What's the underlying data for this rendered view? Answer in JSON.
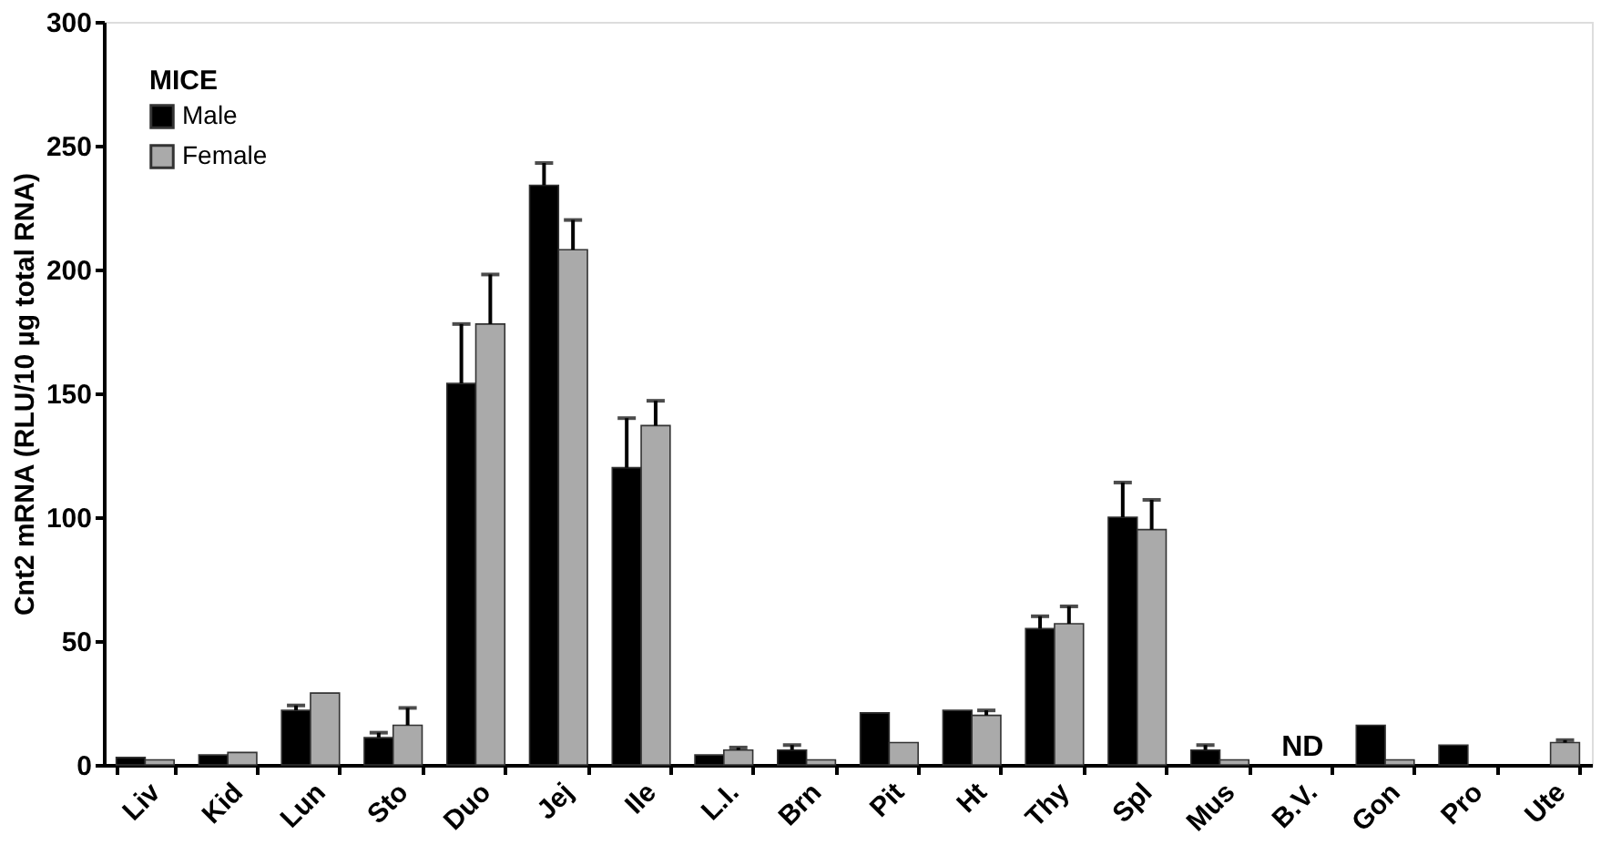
{
  "chart_data": {
    "type": "bar",
    "ylabel": "Cnt2 mRNA (RLU/10 µg total RNA)",
    "legend_title": "MICE",
    "categories": [
      "Liv",
      "Kid",
      "Lun",
      "Sto",
      "Duo",
      "Jej",
      "Ile",
      "L.I.",
      "Brn",
      "Pit",
      "Ht",
      "Thy",
      "Spl",
      "Mus",
      "B.V.",
      "Gon",
      "Pro",
      "Ute"
    ],
    "series": [
      {
        "name": "Male",
        "color": "#000000",
        "values": [
          3,
          4,
          22,
          11,
          154,
          234,
          120,
          4,
          6,
          21,
          22,
          55,
          100,
          6,
          null,
          16,
          8,
          null
        ],
        "errors": [
          null,
          null,
          [
            22,
            24
          ],
          [
            11,
            13
          ],
          [
            154,
            178
          ],
          [
            234,
            243
          ],
          [
            120,
            140
          ],
          null,
          [
            6,
            8
          ],
          null,
          null,
          [
            55,
            60
          ],
          [
            100,
            114
          ],
          [
            6,
            8
          ],
          null,
          null,
          null,
          null
        ]
      },
      {
        "name": "Female",
        "color": "#aaaaaa",
        "values": [
          2,
          5,
          29,
          16,
          178,
          208,
          137,
          6,
          2,
          9,
          20,
          57,
          95,
          2,
          null,
          2,
          null,
          9
        ],
        "errors": [
          null,
          null,
          null,
          [
            16,
            23
          ],
          [
            178,
            198
          ],
          [
            208,
            220
          ],
          [
            137,
            147
          ],
          [
            6,
            7
          ],
          null,
          null,
          [
            20,
            22
          ],
          [
            57,
            64
          ],
          [
            95,
            107
          ],
          null,
          null,
          null,
          null,
          [
            9,
            10
          ]
        ]
      }
    ],
    "ylim": [
      0,
      300
    ],
    "yticks": [
      0,
      50,
      100,
      150,
      200,
      250,
      300
    ],
    "grid": false,
    "legend": "top left",
    "annotations": [
      "ND"
    ]
  }
}
